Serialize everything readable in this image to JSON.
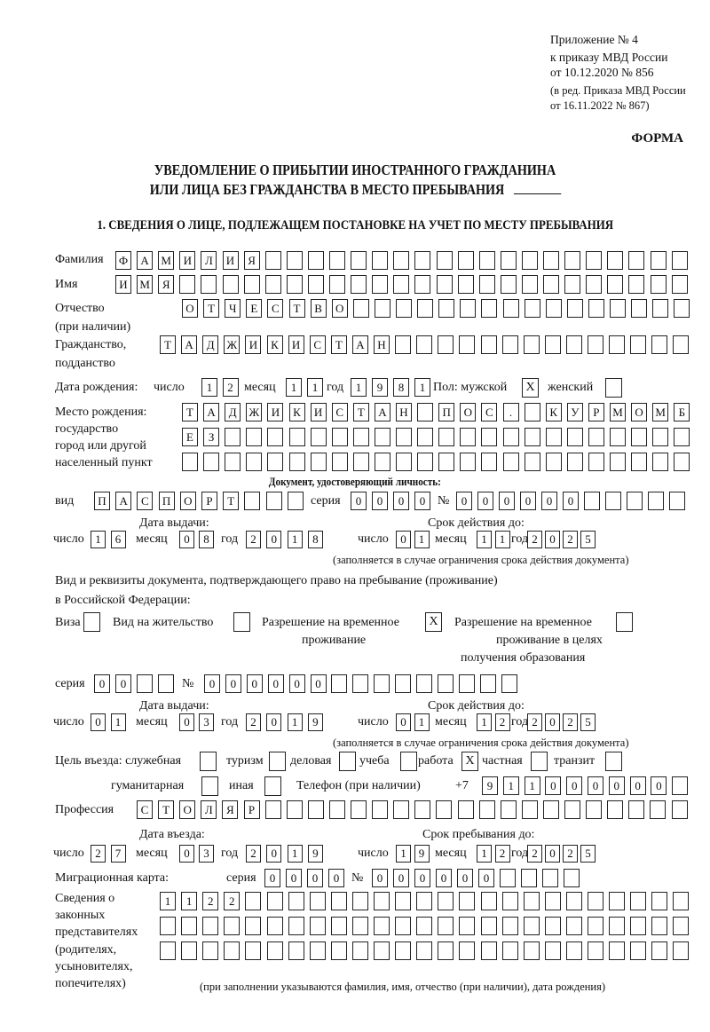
{
  "header": {
    "line1": "Приложение № 4",
    "line2": "к приказу МВД России",
    "line3": "от 10.12.2020 № 856",
    "line4": "(в ред. Приказа МВД России",
    "line5": "от 16.11.2022 № 867)",
    "form_label": "ФОРМА"
  },
  "title": {
    "line1": "УВЕДОМЛЕНИЕ О ПРИБЫТИИ ИНОСТРАННОГО ГРАЖДАНИНА",
    "line2": "ИЛИ ЛИЦА БЕЗ ГРАЖДАНСТВА В МЕСТО ПРЕБЫВАНИЯ"
  },
  "section1": {
    "title": "1. СВЕДЕНИЯ О ЛИЦЕ, ПОДЛЕЖАЩЕМ ПОСТАНОВКЕ НА УЧЕТ ПО МЕСТУ ПРЕБЫВАНИЯ"
  },
  "labels": {
    "surname": "Фамилия",
    "name": "Имя",
    "patronymic": "Отчество",
    "patronymic_note": "(при наличии)",
    "citizenship1": "Гражданство,",
    "citizenship2": "подданство",
    "dob": "Дата рождения:",
    "day": "число",
    "month": "месяц",
    "year": "год",
    "sex_male": "Пол: мужской",
    "sex_female": "женский",
    "birthplace1": "Место рождения:",
    "birthplace2": "государство",
    "birthplace3": "город или другой",
    "birthplace4": "населенный пункт",
    "id_doc": "Документ, удостоверяющий личность:",
    "kind": "вид",
    "series": "серия",
    "number": "№",
    "issue_date": "Дата выдачи:",
    "valid_until": "Срок действия до:",
    "validity_note": "(заполняется в случае ограничения срока действия документа)",
    "stay_doc1": "Вид и реквизиты документа, подтверждающего право на пребывание (проживание)",
    "stay_doc2": "в Российской Федерации:",
    "visa": "Виза",
    "residence": "Вид на жительство",
    "trp1": "Разрешение на временное",
    "trp2": "проживание",
    "trp_edu1": "Разрешение на временное",
    "trp_edu2": "проживание в целях",
    "trp_edu3": "получения образования",
    "purpose": "Цель въезда: служебная",
    "tourism": "туризм",
    "business": "деловая",
    "study": "учеба",
    "work": "работа",
    "private": "частная",
    "transit": "транзит",
    "humanitarian": "гуманитарная",
    "other": "иная",
    "phone": "Телефон (при наличии)",
    "phone_prefix": "+7",
    "profession": "Профессия",
    "entry_date": "Дата въезда:",
    "stay_until": "Срок пребывания до:",
    "migration_card": "Миграционная карта:",
    "reps1": "Сведения о",
    "reps2": "законных",
    "reps3": "представителях",
    "reps4": "(родителях,",
    "reps5": "усыновителях,",
    "reps6": "попечителях)",
    "reps_note": "(при заполнении указываются фамилия, имя, отчество (при наличии), дата рождения)"
  },
  "person": {
    "surname": "ФАМИЛИЯ",
    "name": "ИМЯ",
    "patronymic": "ОТЧЕСТВО",
    "citizenship": "ТАДЖИКИСТАН",
    "dob": {
      "day": "12",
      "month": "11",
      "year": "1981"
    },
    "sex_male": "X",
    "sex_female": "",
    "birthplace": [
      "ТАДЖИКИСТАН ПОС. КУРМОМБ",
      "ЕЗ",
      ""
    ],
    "id_doc": {
      "kind": "ПАСПОРТ",
      "series": "0000",
      "number": "000000",
      "issued": {
        "day": "16",
        "month": "08",
        "year": "2018"
      },
      "valid": {
        "day": "01",
        "month": "11",
        "year": "2025"
      }
    },
    "stay_doc": {
      "visa": "",
      "residence": "",
      "trp": "X",
      "trp_edu": "",
      "series": "00",
      "number": "000000",
      "issued": {
        "day": "01",
        "month": "03",
        "year": "2019"
      },
      "valid": {
        "day": "01",
        "month": "12",
        "year": "2025"
      }
    },
    "purpose": {
      "official": "",
      "tourism": "",
      "business": "",
      "study": "",
      "work": "X",
      "private": "",
      "transit": "",
      "humanitarian": "",
      "other": ""
    },
    "phone": "911000000",
    "profession": "СТОЛЯР",
    "entry": {
      "day": "27",
      "month": "03",
      "year": "2019"
    },
    "stay_until": {
      "day": "19",
      "month": "12",
      "year": "2025"
    },
    "migration_card": {
      "series": "0000",
      "number": "000000"
    },
    "legal_reps": [
      "1122",
      "",
      ""
    ]
  }
}
